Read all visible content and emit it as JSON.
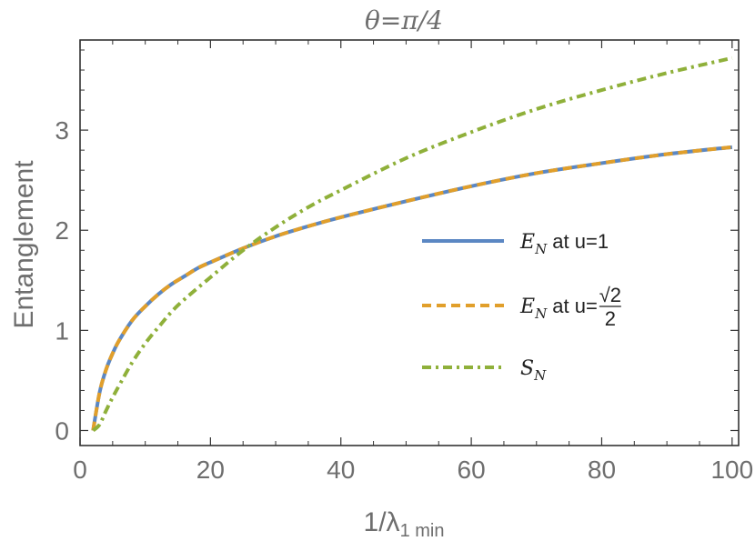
{
  "chart_data": {
    "type": "line",
    "title": "θ=π/4",
    "xlabel": {
      "main": "1/λ",
      "sub": "1 min"
    },
    "ylabel": "Entanglement",
    "xlim": [
      0,
      101
    ],
    "ylim": [
      -0.15,
      3.9
    ],
    "xticks": [
      0,
      20,
      40,
      60,
      80,
      100
    ],
    "yticks": [
      0,
      1,
      2,
      3
    ],
    "grid": false,
    "legend_position": "center-right",
    "series": [
      {
        "name": {
          "sym": "E",
          "sub": "N",
          "rest": " at u=1"
        },
        "color": "#5b87c3",
        "style": "solid",
        "x": [
          2,
          3,
          4,
          5,
          6,
          8,
          10,
          12,
          14,
          16,
          18,
          20,
          25,
          30,
          35,
          40,
          50,
          60,
          70,
          80,
          90,
          100
        ],
        "y": [
          0,
          0.38,
          0.61,
          0.77,
          0.9,
          1.1,
          1.24,
          1.36,
          1.46,
          1.54,
          1.62,
          1.68,
          1.82,
          1.94,
          2.04,
          2.13,
          2.29,
          2.44,
          2.57,
          2.67,
          2.76,
          2.83
        ]
      },
      {
        "name": {
          "sym": "E",
          "sub": "N",
          "rest": " at u=",
          "frac_num": "√2",
          "frac_den": "2"
        },
        "color": "#e19f2b",
        "style": "dashed",
        "x": [
          2,
          3,
          4,
          5,
          6,
          8,
          10,
          12,
          14,
          16,
          18,
          20,
          25,
          30,
          35,
          40,
          50,
          60,
          70,
          80,
          90,
          100
        ],
        "y": [
          0,
          0.38,
          0.61,
          0.77,
          0.9,
          1.1,
          1.24,
          1.36,
          1.46,
          1.54,
          1.62,
          1.68,
          1.82,
          1.94,
          2.04,
          2.13,
          2.29,
          2.44,
          2.57,
          2.67,
          2.76,
          2.83
        ]
      },
      {
        "name": {
          "sym": "S",
          "sub": "N",
          "rest": ""
        },
        "color": "#8fb03a",
        "style": "dashdot",
        "x": [
          2,
          3,
          4,
          5,
          6,
          8,
          10,
          12,
          15,
          20,
          25,
          30,
          35,
          40,
          50,
          60,
          70,
          80,
          90,
          100
        ],
        "y": [
          0,
          0.06,
          0.2,
          0.33,
          0.45,
          0.68,
          0.87,
          1.03,
          1.25,
          1.53,
          1.8,
          2.03,
          2.23,
          2.4,
          2.72,
          2.98,
          3.21,
          3.4,
          3.57,
          3.72
        ]
      }
    ]
  }
}
